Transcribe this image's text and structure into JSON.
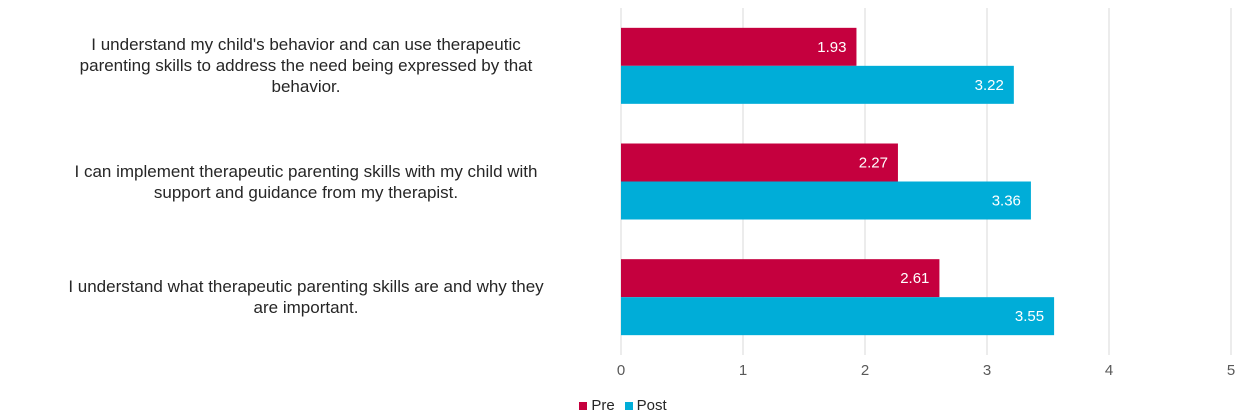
{
  "chart_data": {
    "type": "bar",
    "orientation": "horizontal",
    "categories": [
      "I understand my child's behavior and can use therapeutic parenting skills to address the need being expressed by that behavior.",
      "I can implement therapeutic parenting skills with my child with support and guidance from my therapist.",
      "I understand what therapeutic parenting skills are and why they are important."
    ],
    "category_lines": [
      [
        "I understand my child's behavior and can use therapeutic",
        "parenting skills to address the need being expressed by that",
        "behavior."
      ],
      [
        "I can implement therapeutic parenting skills with my child with",
        "support and guidance from my therapist."
      ],
      [
        "I understand what therapeutic parenting skills are and why they",
        "are important."
      ]
    ],
    "series": [
      {
        "name": "Pre",
        "color": "#C5003E",
        "values": [
          1.93,
          2.27,
          2.61
        ],
        "labels": [
          "1.93",
          "2.27",
          "2.61"
        ]
      },
      {
        "name": "Post",
        "color": "#00ADD8",
        "values": [
          3.22,
          3.36,
          3.55
        ],
        "labels": [
          "3.22",
          "3.36",
          "3.55"
        ]
      }
    ],
    "xlim": [
      0,
      5
    ],
    "ticks": [
      "0",
      "1",
      "2",
      "3",
      "4",
      "5"
    ],
    "grid": true,
    "legend_position": "bottom",
    "data_labels": "inside-end"
  }
}
